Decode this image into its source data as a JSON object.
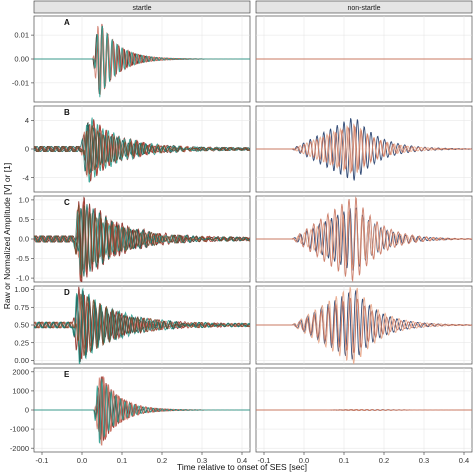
{
  "chart_data": {
    "type": "line",
    "facet_columns": [
      "startle",
      "non-startle"
    ],
    "xlabel": "Time relative to onset of SES [sec]",
    "ylabel": "Raw or Normalized Amplitude [V] or [1]",
    "xlim": [
      -0.12,
      0.42
    ],
    "x_ticks": [
      -0.1,
      0.0,
      0.1,
      0.2,
      0.3,
      0.4
    ],
    "x_tick_labels": [
      "-0.1",
      "0.0",
      "0.1",
      "0.2",
      "0.3",
      "0.4"
    ],
    "grid": true,
    "legend": "none",
    "colors": {
      "startle_series": [
        "#3b1f14",
        "#8e2a22",
        "#b1453a",
        "#cf7b6a",
        "#2a9d8f",
        "#1c6f66",
        "#7a4a2a"
      ],
      "nonstartle_series": [
        "#1f3a68",
        "#e8a587",
        "#c9745e"
      ],
      "strip_bg": "#e5e5e5",
      "grid": "#e3e3e3",
      "border": "#4d4d4d"
    },
    "rows": [
      {
        "label": "A",
        "ylim": [
          -0.018,
          0.018
        ],
        "y_ticks": [
          -0.01,
          0.0,
          0.01
        ],
        "y_tick_labels": [
          "-0.01",
          "0.00",
          "0.01"
        ],
        "startle": {
          "onset": 0.03,
          "peak": 0.015,
          "decay": 0.045,
          "freq": 80,
          "n_traces": 5,
          "centre": 0.0
        },
        "nonstartle": {
          "onset": -0.03,
          "peak": 0.0,
          "decay": 0.12,
          "freq": 60,
          "n_traces": 3,
          "centre": 0.0
        }
      },
      {
        "label": "B",
        "ylim": [
          -6.0,
          6.0
        ],
        "y_ticks": [
          -4,
          0,
          4
        ],
        "y_tick_labels": [
          "-4",
          "0",
          "4"
        ],
        "startle": {
          "onset": 0.0,
          "peak": 4.5,
          "decay": 0.08,
          "freq": 70,
          "n_traces": 7,
          "centre": 0.0
        },
        "nonstartle": {
          "onset": -0.03,
          "peak": 3.6,
          "decay": 0.12,
          "freq": 60,
          "n_traces": 3,
          "centre": 0.0
        }
      },
      {
        "label": "C",
        "ylim": [
          -1.1,
          1.1
        ],
        "y_ticks": [
          -1.0,
          -0.5,
          0.0,
          0.5,
          1.0
        ],
        "y_tick_labels": [
          "-1.0",
          "-0.5",
          "0.0",
          "0.5",
          "1.0"
        ],
        "startle": {
          "onset": -0.02,
          "peak": 1.0,
          "decay": 0.09,
          "freq": 70,
          "n_traces": 7,
          "centre": 0.0
        },
        "nonstartle": {
          "onset": -0.03,
          "peak": 1.0,
          "decay": 0.12,
          "freq": 60,
          "n_traces": 3,
          "centre": 0.0
        }
      },
      {
        "label": "D",
        "ylim": [
          -0.05,
          1.05
        ],
        "y_ticks": [
          0.0,
          0.25,
          0.5,
          0.75,
          1.0
        ],
        "y_tick_labels": [
          "0.00",
          "0.25",
          "0.50",
          "0.75",
          "1.00"
        ],
        "startle": {
          "onset": -0.02,
          "peak": 0.5,
          "decay": 0.09,
          "freq": 70,
          "n_traces": 7,
          "centre": 0.5
        },
        "nonstartle": {
          "onset": -0.03,
          "peak": 0.5,
          "decay": 0.12,
          "freq": 60,
          "n_traces": 3,
          "centre": 0.5
        }
      },
      {
        "label": "E",
        "ylim": [
          -2200,
          2200
        ],
        "y_ticks": [
          -2000,
          -1000,
          0,
          1000,
          2000
        ],
        "y_tick_labels": [
          "-2000",
          "-1000",
          "0",
          "1000",
          "2000"
        ],
        "startle": {
          "onset": 0.03,
          "peak": 1900,
          "decay": 0.045,
          "freq": 80,
          "n_traces": 5,
          "centre": 0.0
        },
        "nonstartle": {
          "onset": 0.05,
          "peak": 60,
          "decay": 0.04,
          "freq": 70,
          "n_traces": 3,
          "centre": 0.0
        }
      }
    ]
  }
}
